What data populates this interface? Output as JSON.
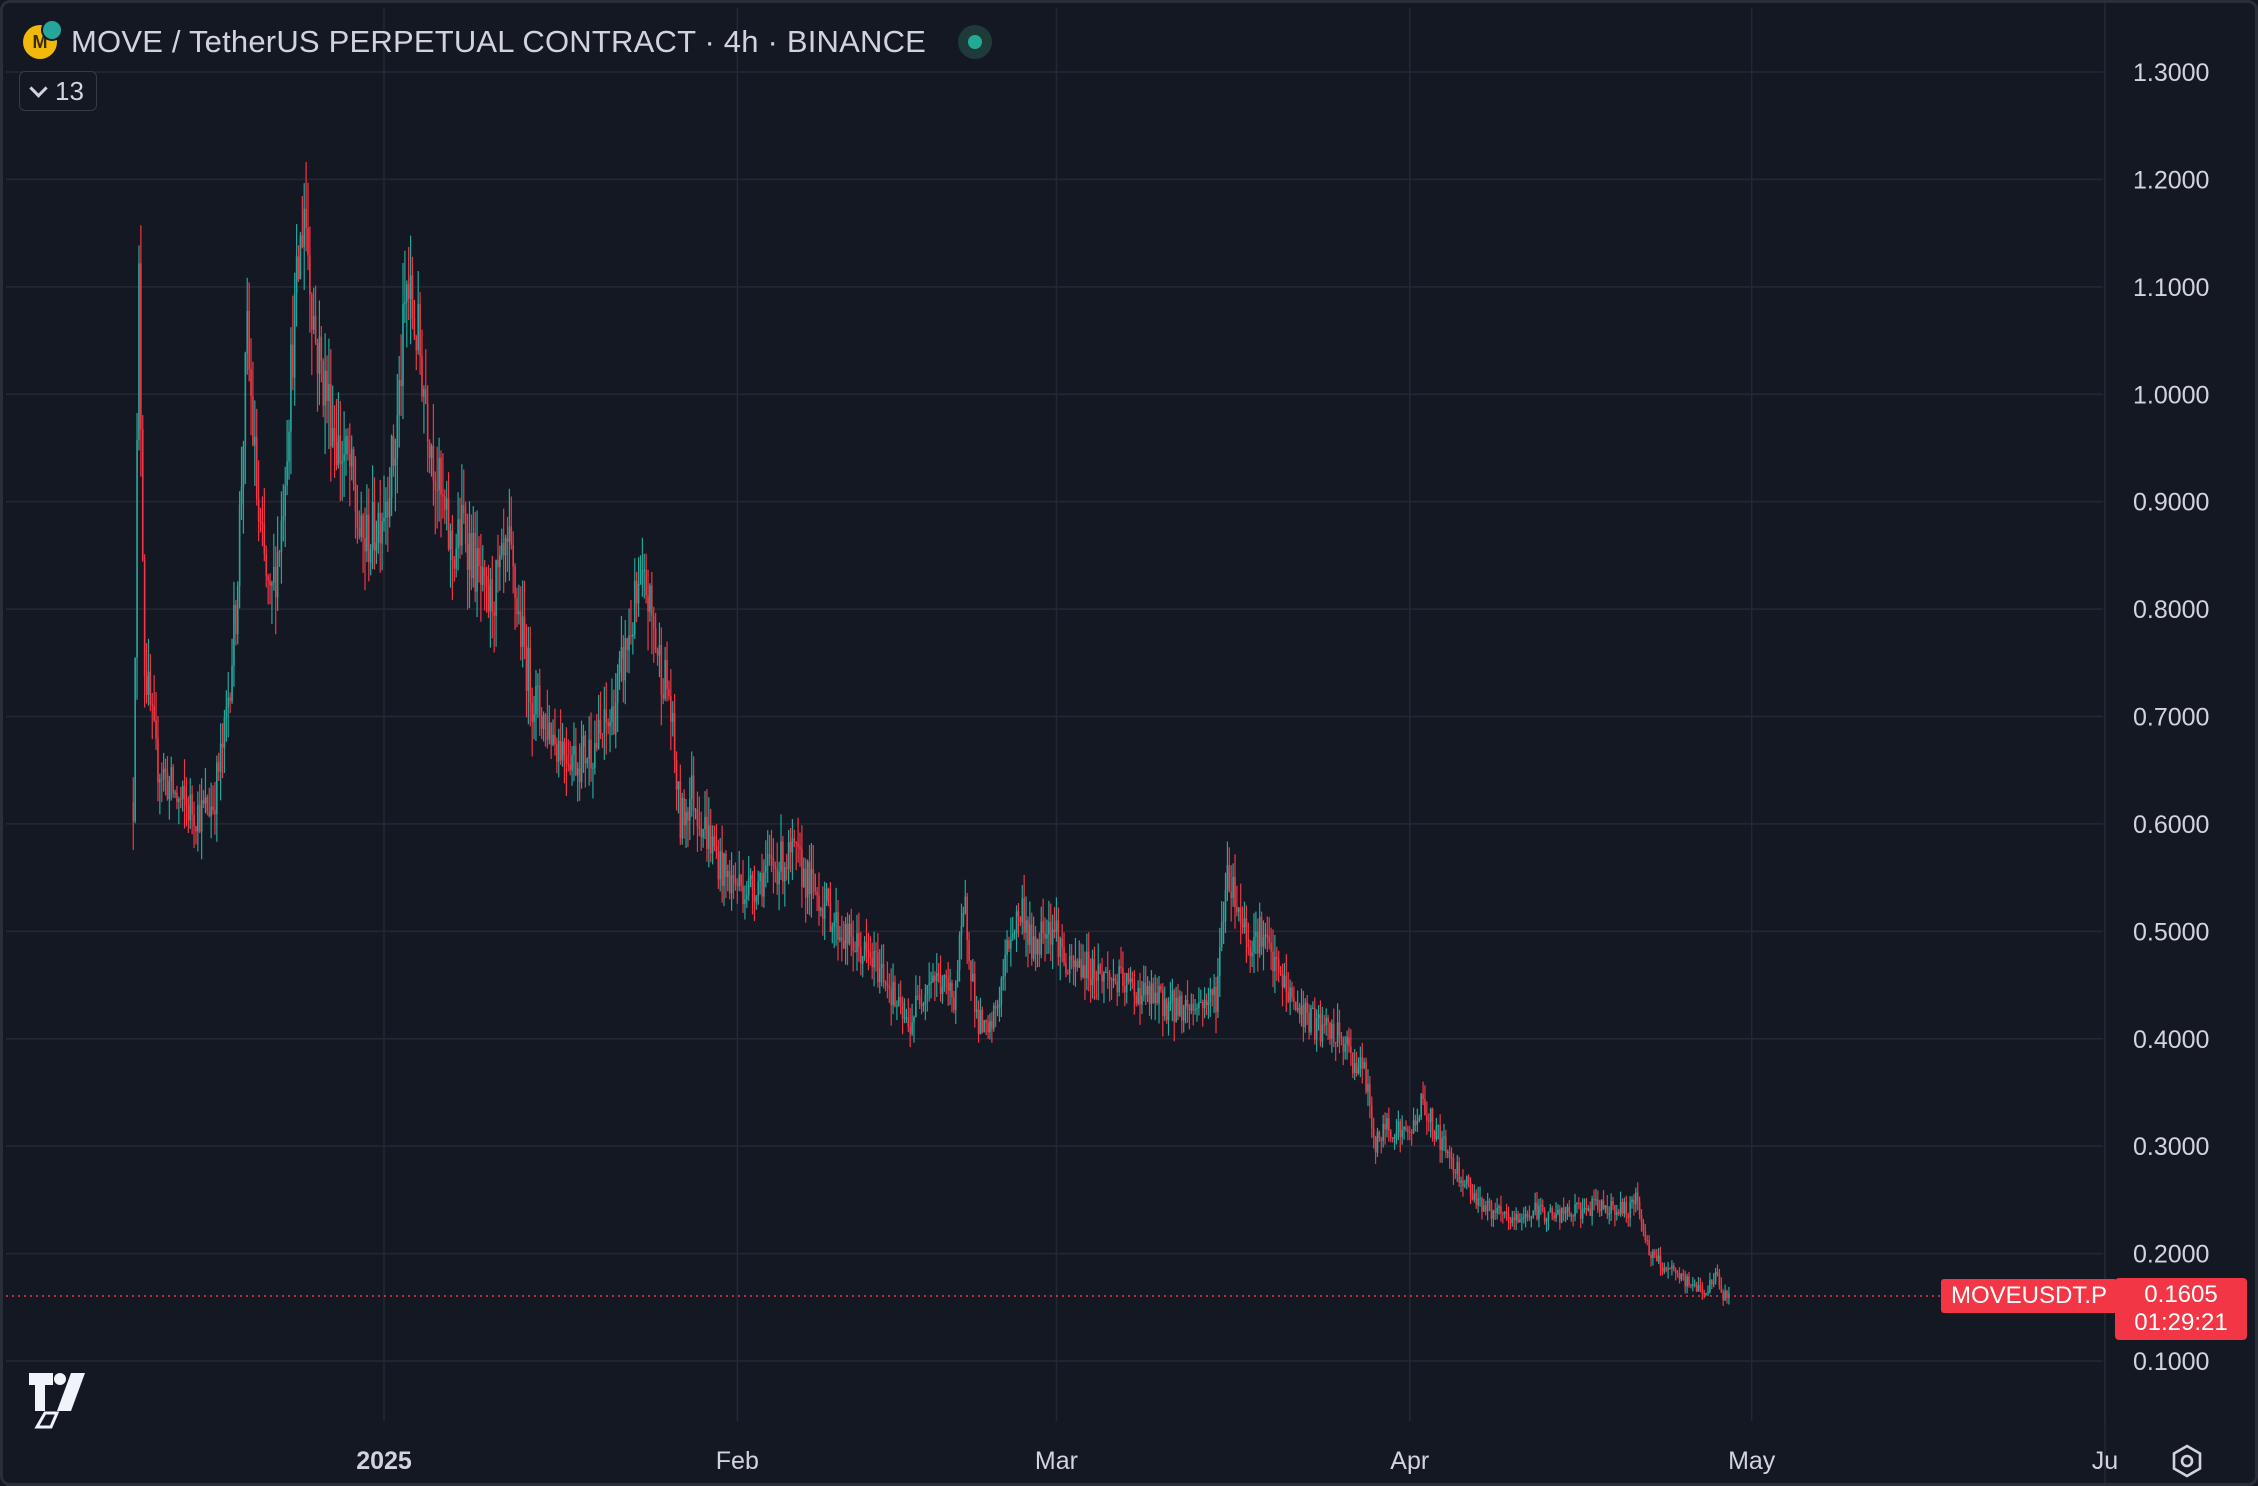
{
  "header": {
    "title": "MOVE / TetherUS PERPETUAL CONTRACT · 4h · BINANCE",
    "indicators_count": "13",
    "icons": [
      "coin-logo",
      "market-status-icon",
      "chevron-down-icon",
      "tradingview-logo",
      "settings-icon"
    ]
  },
  "price_label": {
    "symbol": "MOVEUSDT.P",
    "price": "0.1605",
    "countdown": "01:29:21"
  },
  "colors": {
    "background": "#141823",
    "grid": "#232834",
    "up": "#26a69a",
    "down": "#f23645",
    "text": "#d1d4dc"
  },
  "chart_data": {
    "type": "candlestick",
    "title": "MOVE / TetherUS PERPETUAL CONTRACT · 4h · BINANCE",
    "interval": "4h",
    "last_price": 0.1605,
    "ylim": [
      0.05,
      1.35
    ],
    "y_ticks": [
      "1.3000",
      "1.2000",
      "1.1000",
      "1.0000",
      "0.9000",
      "0.8000",
      "0.7000",
      "0.6000",
      "0.5000",
      "0.4000",
      "0.3000",
      "0.2000",
      "0.1000"
    ],
    "x_ticks": [
      {
        "label": "2025",
        "date": "2025-01-01",
        "bold": true
      },
      {
        "label": "Feb",
        "date": "2025-02-01"
      },
      {
        "label": "Mar",
        "date": "2025-03-01"
      },
      {
        "label": "Apr",
        "date": "2025-04-01"
      },
      {
        "label": "May",
        "date": "2025-05-01"
      },
      {
        "label": "Ju",
        "date": "2025-06-01"
      }
    ],
    "price_path": [
      [
        "2024-12-10",
        0.62
      ],
      [
        "2024-12-10T12:00",
        1.1
      ],
      [
        "2024-12-11",
        0.75
      ],
      [
        "2024-12-12",
        0.66
      ],
      [
        "2024-12-14",
        0.62
      ],
      [
        "2024-12-16",
        0.61
      ],
      [
        "2024-12-17",
        0.62
      ],
      [
        "2024-12-18",
        0.68
      ],
      [
        "2024-12-19",
        0.8
      ],
      [
        "2024-12-20",
        1.05
      ],
      [
        "2024-12-21",
        0.88
      ],
      [
        "2024-12-22",
        0.8
      ],
      [
        "2024-12-23",
        0.88
      ],
      [
        "2024-12-24",
        1.05
      ],
      [
        "2024-12-25",
        1.18
      ],
      [
        "2024-12-26",
        1.05
      ],
      [
        "2024-12-27",
        1.0
      ],
      [
        "2024-12-28",
        0.95
      ],
      [
        "2024-12-29",
        0.93
      ],
      [
        "2024-12-30",
        0.86
      ],
      [
        "2024-12-31",
        0.87
      ],
      [
        "2025-01-01",
        0.9
      ],
      [
        "2025-01-02",
        0.95
      ],
      [
        "2025-01-03",
        1.1
      ],
      [
        "2025-01-04",
        1.05
      ],
      [
        "2025-01-05",
        0.97
      ],
      [
        "2025-01-06",
        0.9
      ],
      [
        "2025-01-07",
        0.85
      ],
      [
        "2025-01-08",
        0.88
      ],
      [
        "2025-01-09",
        0.84
      ],
      [
        "2025-01-10",
        0.8
      ],
      [
        "2025-01-12",
        0.85
      ],
      [
        "2025-01-13",
        0.78
      ],
      [
        "2025-01-14",
        0.72
      ],
      [
        "2025-01-16",
        0.68
      ],
      [
        "2025-01-18",
        0.66
      ],
      [
        "2025-01-20",
        0.68
      ],
      [
        "2025-01-21",
        0.7
      ],
      [
        "2025-01-23",
        0.8
      ],
      [
        "2025-01-24",
        0.82
      ],
      [
        "2025-01-25",
        0.76
      ],
      [
        "2025-01-26",
        0.72
      ],
      [
        "2025-01-27",
        0.6
      ],
      [
        "2025-01-28",
        0.63
      ],
      [
        "2025-01-29",
        0.6
      ],
      [
        "2025-01-31",
        0.55
      ],
      [
        "2025-02-02",
        0.54
      ],
      [
        "2025-02-04",
        0.56
      ],
      [
        "2025-02-06",
        0.57
      ],
      [
        "2025-02-07",
        0.55
      ],
      [
        "2025-02-09",
        0.52
      ],
      [
        "2025-02-10",
        0.5
      ],
      [
        "2025-02-12",
        0.48
      ],
      [
        "2025-02-14",
        0.46
      ],
      [
        "2025-02-15",
        0.43
      ],
      [
        "2025-02-16",
        0.41
      ],
      [
        "2025-02-17",
        0.44
      ],
      [
        "2025-02-18",
        0.46
      ],
      [
        "2025-02-19",
        0.45
      ],
      [
        "2025-02-20",
        0.44
      ],
      [
        "2025-02-21",
        0.52
      ],
      [
        "2025-02-22",
        0.42
      ],
      [
        "2025-02-23",
        0.4
      ],
      [
        "2025-02-24",
        0.44
      ],
      [
        "2025-02-25",
        0.5
      ],
      [
        "2025-02-26",
        0.52
      ],
      [
        "2025-02-27",
        0.48
      ],
      [
        "2025-02-28",
        0.51
      ],
      [
        "2025-03-01",
        0.5
      ],
      [
        "2025-03-02",
        0.46
      ],
      [
        "2025-03-03",
        0.47
      ],
      [
        "2025-03-05",
        0.46
      ],
      [
        "2025-03-07",
        0.45
      ],
      [
        "2025-03-09",
        0.44
      ],
      [
        "2025-03-11",
        0.43
      ],
      [
        "2025-03-13",
        0.43
      ],
      [
        "2025-03-15",
        0.44
      ],
      [
        "2025-03-16",
        0.56
      ],
      [
        "2025-03-17",
        0.52
      ],
      [
        "2025-03-18",
        0.49
      ],
      [
        "2025-03-19",
        0.5
      ],
      [
        "2025-03-20",
        0.47
      ],
      [
        "2025-03-21",
        0.45
      ],
      [
        "2025-03-22",
        0.43
      ],
      [
        "2025-03-24",
        0.41
      ],
      [
        "2025-03-26",
        0.4
      ],
      [
        "2025-03-27",
        0.38
      ],
      [
        "2025-03-28",
        0.37
      ],
      [
        "2025-03-29",
        0.3
      ],
      [
        "2025-03-30",
        0.32
      ],
      [
        "2025-04-01",
        0.31
      ],
      [
        "2025-04-02",
        0.34
      ],
      [
        "2025-04-03",
        0.32
      ],
      [
        "2025-04-05",
        0.28
      ],
      [
        "2025-04-07",
        0.25
      ],
      [
        "2025-04-08",
        0.24
      ],
      [
        "2025-04-10",
        0.23
      ],
      [
        "2025-04-12",
        0.24
      ],
      [
        "2025-04-14",
        0.235
      ],
      [
        "2025-04-16",
        0.24
      ],
      [
        "2025-04-18",
        0.245
      ],
      [
        "2025-04-20",
        0.24
      ],
      [
        "2025-04-21",
        0.25
      ],
      [
        "2025-04-22",
        0.2
      ],
      [
        "2025-04-23",
        0.19
      ],
      [
        "2025-04-25",
        0.175
      ],
      [
        "2025-04-26",
        0.17
      ],
      [
        "2025-04-27",
        0.165
      ],
      [
        "2025-04-28",
        0.18
      ],
      [
        "2025-04-28T12:00",
        0.16
      ],
      [
        "2025-04-29",
        0.1605
      ]
    ]
  }
}
